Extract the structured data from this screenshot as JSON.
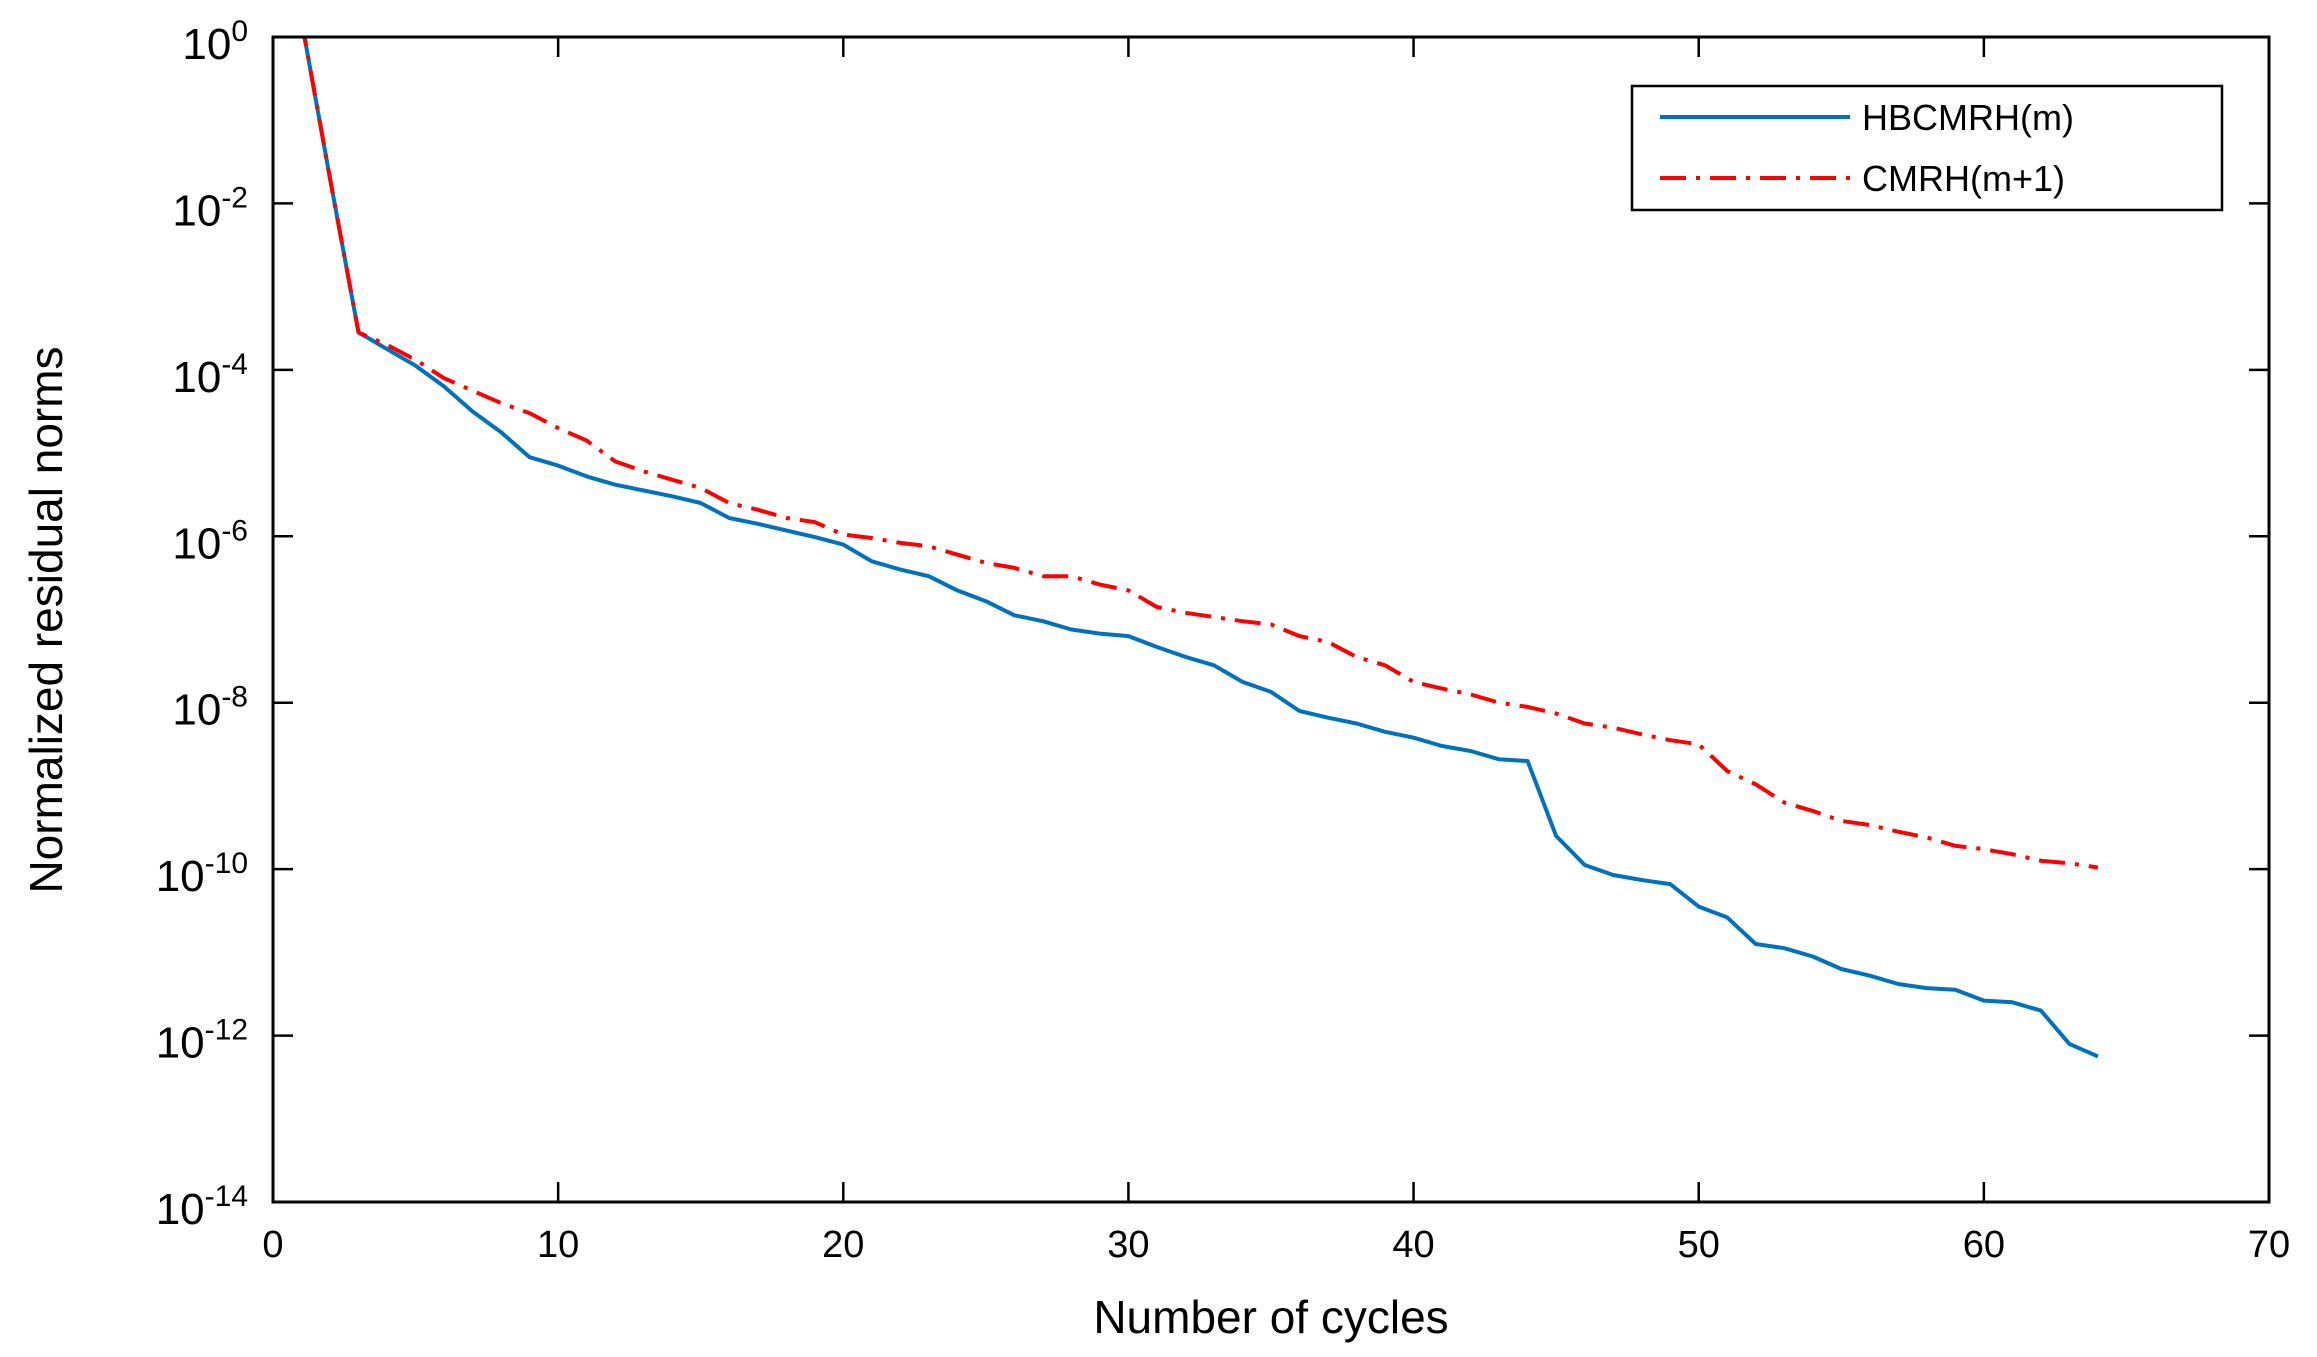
{
  "chart_data": {
    "type": "line",
    "title": "",
    "xlabel": "Number of cycles",
    "ylabel": "Normalized residual norms",
    "xlim": [
      0,
      70
    ],
    "ylim_log10": [
      -14,
      0
    ],
    "y_scale": "log",
    "x_ticks": [
      0,
      10,
      20,
      30,
      40,
      50,
      60,
      70
    ],
    "y_ticks": [
      {
        "base": "10",
        "exp": "0"
      },
      {
        "base": "10",
        "exp": "-2"
      },
      {
        "base": "10",
        "exp": "-4"
      },
      {
        "base": "10",
        "exp": "-6"
      },
      {
        "base": "10",
        "exp": "-8"
      },
      {
        "base": "10",
        "exp": "-10"
      },
      {
        "base": "10",
        "exp": "-12"
      },
      {
        "base": "10",
        "exp": "-14"
      }
    ],
    "grid": false,
    "legend_position": "top-right",
    "series": [
      {
        "name": "HBCMRH(m)",
        "color": "#0072BD",
        "style": "solid",
        "x": [
          1,
          2,
          3,
          4,
          5,
          6,
          7,
          8,
          9,
          10,
          11,
          12,
          13,
          14,
          15,
          16,
          17,
          18,
          19,
          20,
          21,
          22,
          23,
          24,
          25,
          26,
          27,
          28,
          29,
          30,
          31,
          32,
          33,
          34,
          35,
          36,
          37,
          38,
          39,
          40,
          41,
          42,
          43,
          44,
          45,
          46,
          47,
          48,
          49,
          50,
          51,
          52,
          53,
          54,
          55,
          56,
          57,
          58,
          59,
          60,
          61,
          62,
          63,
          64
        ],
        "log10_y": [
          0.2,
          -1.7,
          -3.55,
          -3.75,
          -3.95,
          -4.2,
          -4.5,
          -4.75,
          -5.05,
          -5.15,
          -5.28,
          -5.38,
          -5.45,
          -5.52,
          -5.6,
          -5.78,
          -5.85,
          -5.93,
          -6.01,
          -6.1,
          -6.3,
          -6.4,
          -6.48,
          -6.65,
          -6.78,
          -6.95,
          -7.02,
          -7.12,
          -7.17,
          -7.2,
          -7.33,
          -7.45,
          -7.55,
          -7.75,
          -7.87,
          -8.1,
          -8.18,
          -8.25,
          -8.35,
          -8.42,
          -8.52,
          -8.58,
          -8.68,
          -8.7,
          -9.6,
          -9.95,
          -10.07,
          -10.13,
          -10.18,
          -10.45,
          -10.58,
          -10.9,
          -10.95,
          -11.05,
          -11.2,
          -11.28,
          -11.38,
          -11.43,
          -11.45,
          -11.58,
          -11.6,
          -11.7,
          -12.1,
          -12.25
        ]
      },
      {
        "name": "CMRH(m+1)",
        "color": "#FF0000",
        "style": "dash-dot",
        "x": [
          1,
          2,
          3,
          4,
          5,
          6,
          7,
          8,
          9,
          10,
          11,
          12,
          13,
          14,
          15,
          16,
          17,
          18,
          19,
          20,
          21,
          22,
          23,
          24,
          25,
          26,
          27,
          28,
          29,
          30,
          31,
          32,
          33,
          34,
          35,
          36,
          37,
          38,
          39,
          40,
          41,
          42,
          43,
          44,
          45,
          46,
          47,
          48,
          49,
          50,
          51,
          52,
          53,
          54,
          55,
          56,
          57,
          58,
          59,
          60,
          61,
          62,
          63,
          64
        ],
        "log10_y": [
          0.2,
          -1.7,
          -3.55,
          -3.7,
          -3.88,
          -4.1,
          -4.25,
          -4.4,
          -4.52,
          -4.7,
          -4.85,
          -5.1,
          -5.22,
          -5.32,
          -5.42,
          -5.6,
          -5.68,
          -5.78,
          -5.83,
          -5.98,
          -6.02,
          -6.08,
          -6.12,
          -6.22,
          -6.32,
          -6.38,
          -6.48,
          -6.48,
          -6.58,
          -6.65,
          -6.85,
          -6.92,
          -6.97,
          -7.02,
          -7.06,
          -7.2,
          -7.27,
          -7.45,
          -7.55,
          -7.75,
          -7.83,
          -7.9,
          -8.0,
          -8.05,
          -8.13,
          -8.25,
          -8.3,
          -8.38,
          -8.45,
          -8.5,
          -8.82,
          -8.98,
          -9.2,
          -9.3,
          -9.42,
          -9.47,
          -9.55,
          -9.62,
          -9.72,
          -9.76,
          -9.82,
          -9.9,
          -9.93,
          -9.98
        ]
      }
    ]
  }
}
